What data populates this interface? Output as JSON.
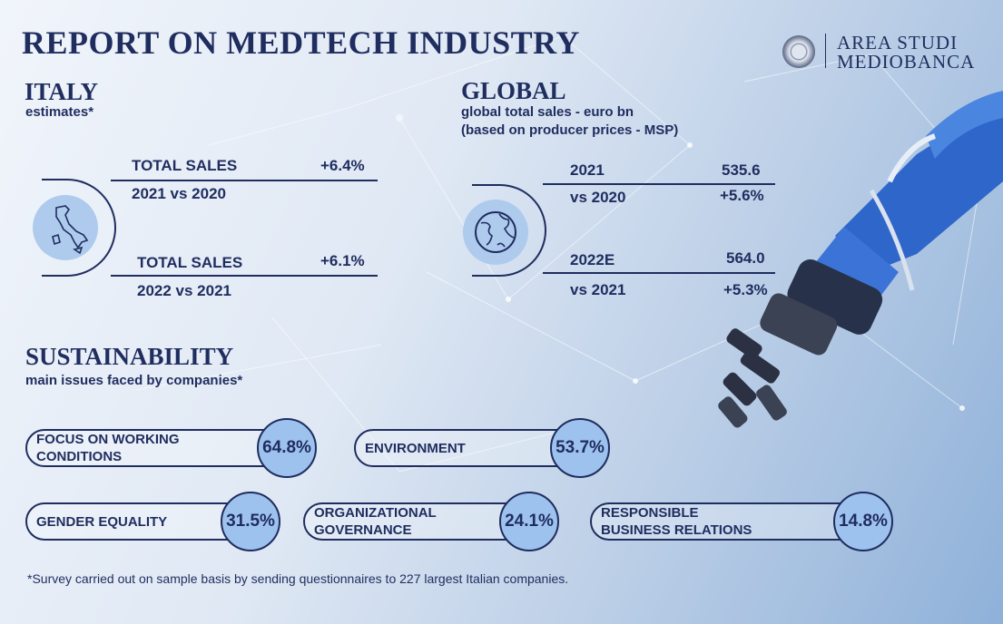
{
  "header": {
    "title": "REPORT ON MEDTECH INDUSTRY"
  },
  "logo": {
    "line1": "AREA STUDI",
    "line2": "MEDIOBANCA"
  },
  "italy": {
    "heading": "ITALY",
    "subtitle": "estimates*",
    "rows": [
      {
        "label": "TOTAL SALES",
        "value": "+6.4%",
        "period": "2021 vs 2020"
      },
      {
        "label": "TOTAL SALES",
        "value": "+6.1%",
        "period": "2022 vs 2021"
      }
    ]
  },
  "global": {
    "heading": "GLOBAL",
    "subtitle_line1": "global total sales - euro bn",
    "subtitle_line2": "(based on producer prices - MSP)",
    "rows": [
      {
        "year": "2021",
        "value": "535.6",
        "comparison": "vs 2020",
        "change": "+5.6%"
      },
      {
        "year": "2022E",
        "value": "564.0",
        "comparison": "vs 2021",
        "change": "+5.3%"
      }
    ]
  },
  "sustainability": {
    "heading": "SUSTAINABILITY",
    "subtitle": "main issues faced by companies*",
    "issues": [
      {
        "label_line1": "FOCUS ON WORKING",
        "label_line2": "CONDITIONS",
        "value": "64.8%"
      },
      {
        "label_line1": "ENVIRONMENT",
        "label_line2": "",
        "value": "53.7%"
      },
      {
        "label_line1": "GENDER EQUALITY",
        "label_line2": "",
        "value": "31.5%"
      },
      {
        "label_line1": "ORGANIZATIONAL",
        "label_line2": "GOVERNANCE",
        "value": "24.1%"
      },
      {
        "label_line1": "RESPONSIBLE",
        "label_line2": "BUSINESS RELATIONS",
        "value": "14.8%"
      }
    ]
  },
  "footnote": "*Survey carried out on sample basis by sending questionnaires to 227 largest Italian companies."
}
